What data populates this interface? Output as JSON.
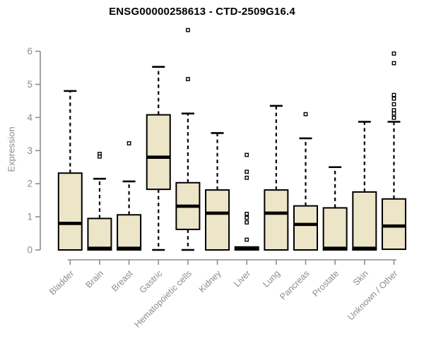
{
  "chart_data": {
    "type": "box",
    "title": "ENSG00000258613 - CTD-2509G16.4",
    "ylabel": "Expression",
    "xlabel": "",
    "ylim": [
      0,
      6
    ],
    "yticks": [
      0,
      1,
      2,
      3,
      4,
      5,
      6
    ],
    "grid": false,
    "legend": "none",
    "categories": [
      "Bladder",
      "Brain",
      "Breast",
      "Gastric",
      "Hematopoietic cells",
      "Kidney",
      "Liver",
      "Lung",
      "Pancreas",
      "Prostate",
      "Skin",
      "Unknown / Other"
    ],
    "series": [
      {
        "name": "Bladder",
        "low": 0,
        "q1": 0,
        "median": 0.8,
        "q3": 2.32,
        "high": 4.8,
        "outliers": []
      },
      {
        "name": "Brain",
        "low": 0,
        "q1": 0,
        "median": 0.05,
        "q3": 0.95,
        "high": 2.15,
        "outliers": [
          2.9,
          2.82
        ]
      },
      {
        "name": "Breast",
        "low": 0,
        "q1": 0,
        "median": 0.05,
        "q3": 1.06,
        "high": 2.07,
        "outliers": [
          3.22
        ]
      },
      {
        "name": "Gastric",
        "low": 0,
        "q1": 1.83,
        "median": 2.8,
        "q3": 4.08,
        "high": 5.53,
        "outliers": []
      },
      {
        "name": "Hematopoietic cells",
        "low": 0,
        "q1": 0.62,
        "median": 1.32,
        "q3": 2.03,
        "high": 4.12,
        "outliers": [
          6.64,
          5.16
        ]
      },
      {
        "name": "Kidney",
        "low": 0,
        "q1": 0,
        "median": 1.11,
        "q3": 1.81,
        "high": 3.53,
        "outliers": []
      },
      {
        "name": "Liver",
        "low": 0,
        "q1": 0,
        "median": 0.05,
        "q3": 0.09,
        "high": 0.09,
        "outliers": [
          2.87,
          2.36,
          2.18,
          1.09,
          0.97,
          0.83,
          0.31
        ]
      },
      {
        "name": "Lung",
        "low": 0,
        "q1": 0,
        "median": 1.11,
        "q3": 1.81,
        "high": 4.35,
        "outliers": []
      },
      {
        "name": "Pancreas",
        "low": 0,
        "q1": 0,
        "median": 0.77,
        "q3": 1.33,
        "high": 3.37,
        "outliers": [
          4.1
        ]
      },
      {
        "name": "Prostate",
        "low": 0,
        "q1": 0,
        "median": 0.05,
        "q3": 1.27,
        "high": 2.5,
        "outliers": []
      },
      {
        "name": "Skin",
        "low": 0,
        "q1": 0,
        "median": 0.05,
        "q3": 1.75,
        "high": 3.87,
        "outliers": []
      },
      {
        "name": "Unknown / Other",
        "low": 0.02,
        "q1": 0.02,
        "median": 0.72,
        "q3": 1.54,
        "high": 3.87,
        "outliers": [
          5.93,
          5.64,
          4.68,
          4.57,
          4.4,
          4.22,
          4.12,
          3.99
        ]
      }
    ],
    "colors": {
      "box_fill": "#EDE5C7",
      "box_stroke": "#000000",
      "median": "#000000",
      "whisker": "#000000",
      "outlier_stroke": "#000000",
      "outlier_fill": "#FFFFFF",
      "axis": "#8C8C8C",
      "tick_label": "#8C8C8C",
      "title": "#000000",
      "background": "#FFFFFF"
    }
  }
}
